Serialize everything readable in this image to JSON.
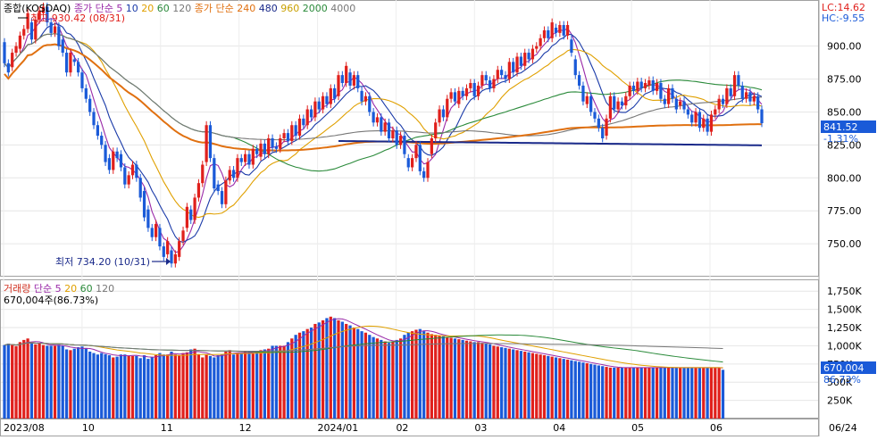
{
  "price_panel": {
    "legend": [
      {
        "text": "종합(KOSDAQ)",
        "color": "#000000"
      },
      {
        "text": "종가 단순 5",
        "color": "#9a2aa8"
      },
      {
        "text": "10",
        "color": "#1a3aa8"
      },
      {
        "text": "20",
        "color": "#e0a000"
      },
      {
        "text": "60",
        "color": "#2a8a3a"
      },
      {
        "text": "120",
        "color": "#777777"
      },
      {
        "text": "종가 단순 240",
        "color": "#e07010"
      },
      {
        "text": "480",
        "color": "#1a2a8a"
      },
      {
        "text": "960",
        "color": "#c8a000"
      },
      {
        "text": "2000",
        "color": "#2a8a3a"
      },
      {
        "text": "4000",
        "color": "#777777"
      }
    ],
    "high_label": "최고 930.42 (08/31)",
    "low_label": "최저 734.20 (10/31)",
    "lc_label": "LC:14.62",
    "hc_label": "HC:-9.55",
    "last_price": "841.52",
    "change_pct": "-1.31%",
    "y_ticks": [
      "900.00",
      "875.00",
      "850.00",
      "825.00",
      "800.00",
      "775.00",
      "750.00"
    ]
  },
  "volume_panel": {
    "legend": [
      {
        "text": "거래량",
        "color": "#d03020"
      },
      {
        "text": "단순 5",
        "color": "#9a2aa8"
      },
      {
        "text": "20",
        "color": "#e0a000"
      },
      {
        "text": "60",
        "color": "#2a8a3a"
      },
      {
        "text": "120",
        "color": "#777777"
      }
    ],
    "info_label": "670,004주(86.73%)",
    "last_volume": "670,004",
    "volume_pct": "86.73%",
    "y_ticks": [
      "1,750K",
      "1,500K",
      "1,250K",
      "1,000K",
      "750K",
      "500K",
      "250K"
    ]
  },
  "x_axis": {
    "labels": [
      "2023/08",
      "10",
      "11",
      "12",
      "2024/01",
      "02",
      "03",
      "04",
      "05",
      "06"
    ],
    "last_date": "06/24"
  },
  "colors": {
    "up": "#e0201c",
    "down": "#1a5ad8",
    "last_box": "#1a5ad8"
  },
  "chart_data": {
    "type": "candlestick",
    "index": "KOSDAQ",
    "x_range": [
      "2023/08",
      "06/24"
    ],
    "price_ylim": [
      725,
      935
    ],
    "volume_ylim": [
      0,
      1900
    ],
    "volume_unit": "K shares",
    "price_series": [
      [
        903,
        887
      ],
      [
        887,
        880
      ],
      [
        884,
        895
      ],
      [
        895,
        900
      ],
      [
        898,
        908
      ],
      [
        908,
        913
      ],
      [
        913,
        925
      ],
      [
        918,
        905
      ],
      [
        905,
        920
      ],
      [
        920,
        927
      ],
      [
        925,
        930
      ],
      [
        930,
        918
      ],
      [
        918,
        910
      ],
      [
        910,
        915
      ],
      [
        915,
        900
      ],
      [
        905,
        895
      ],
      [
        895,
        880
      ],
      [
        880,
        895
      ],
      [
        890,
        888
      ],
      [
        888,
        880
      ],
      [
        880,
        868
      ],
      [
        868,
        860
      ],
      [
        860,
        850
      ],
      [
        850,
        840
      ],
      [
        840,
        832
      ],
      [
        832,
        825
      ],
      [
        825,
        812
      ],
      [
        815,
        806
      ],
      [
        806,
        820
      ],
      [
        820,
        815
      ],
      [
        818,
        808
      ],
      [
        808,
        795
      ],
      [
        795,
        802
      ],
      [
        802,
        810
      ],
      [
        810,
        800
      ],
      [
        800,
        785
      ],
      [
        790,
        770
      ],
      [
        776,
        762
      ],
      [
        762,
        755
      ],
      [
        755,
        765
      ],
      [
        762,
        748
      ],
      [
        748,
        740
      ],
      [
        742,
        752
      ],
      [
        745,
        735
      ],
      [
        735,
        742
      ],
      [
        740,
        752
      ],
      [
        752,
        760
      ],
      [
        762,
        778
      ],
      [
        776,
        768
      ],
      [
        768,
        785
      ],
      [
        785,
        796
      ],
      [
        796,
        810
      ],
      [
        812,
        840
      ],
      [
        840,
        815
      ],
      [
        815,
        792
      ],
      [
        795,
        790
      ],
      [
        790,
        780
      ],
      [
        780,
        798
      ],
      [
        798,
        806
      ],
      [
        806,
        800
      ],
      [
        800,
        815
      ],
      [
        815,
        812
      ],
      [
        812,
        818
      ],
      [
        818,
        810
      ],
      [
        810,
        822
      ],
      [
        822,
        818
      ],
      [
        816,
        826
      ],
      [
        826,
        818
      ],
      [
        818,
        830
      ],
      [
        830,
        823
      ],
      [
        824,
        822
      ],
      [
        822,
        830
      ],
      [
        830,
        834
      ],
      [
        834,
        828
      ],
      [
        828,
        840
      ],
      [
        840,
        832
      ],
      [
        832,
        845
      ],
      [
        845,
        840
      ],
      [
        840,
        852
      ],
      [
        852,
        846
      ],
      [
        846,
        858
      ],
      [
        858,
        852
      ],
      [
        852,
        862
      ],
      [
        862,
        856
      ],
      [
        856,
        868
      ],
      [
        868,
        860
      ],
      [
        862,
        878
      ],
      [
        878,
        872
      ],
      [
        872,
        885
      ],
      [
        880,
        870
      ],
      [
        870,
        878
      ],
      [
        878,
        868
      ],
      [
        866,
        858
      ],
      [
        858,
        862
      ],
      [
        862,
        850
      ],
      [
        850,
        842
      ],
      [
        842,
        846
      ],
      [
        846,
        835
      ],
      [
        835,
        842
      ],
      [
        842,
        830
      ],
      [
        830,
        836
      ],
      [
        836,
        825
      ],
      [
        825,
        832
      ],
      [
        832,
        818
      ],
      [
        815,
        808
      ],
      [
        808,
        815
      ],
      [
        815,
        825
      ],
      [
        825,
        805
      ],
      [
        805,
        800
      ],
      [
        800,
        812
      ],
      [
        818,
        830
      ],
      [
        830,
        842
      ],
      [
        842,
        852
      ],
      [
        852,
        846
      ],
      [
        846,
        860
      ],
      [
        860,
        865
      ],
      [
        865,
        858
      ],
      [
        856,
        866
      ],
      [
        866,
        862
      ],
      [
        862,
        868
      ],
      [
        868,
        872
      ],
      [
        872,
        862
      ],
      [
        862,
        870
      ],
      [
        870,
        878
      ],
      [
        878,
        874
      ],
      [
        874,
        868
      ],
      [
        868,
        875
      ],
      [
        875,
        882
      ],
      [
        882,
        878
      ],
      [
        878,
        875
      ],
      [
        875,
        888
      ],
      [
        888,
        880
      ],
      [
        880,
        892
      ],
      [
        892,
        885
      ],
      [
        885,
        895
      ],
      [
        895,
        890
      ],
      [
        890,
        898
      ],
      [
        898,
        900
      ],
      [
        900,
        906
      ],
      [
        906,
        912
      ],
      [
        912,
        906
      ],
      [
        906,
        918
      ],
      [
        914,
        910
      ],
      [
        910,
        916
      ],
      [
        916,
        908
      ],
      [
        908,
        916
      ],
      [
        905,
        895
      ],
      [
        890,
        878
      ],
      [
        878,
        870
      ],
      [
        870,
        858
      ],
      [
        856,
        862
      ],
      [
        862,
        850
      ],
      [
        850,
        845
      ],
      [
        845,
        838
      ],
      [
        838,
        830
      ],
      [
        832,
        845
      ],
      [
        845,
        862
      ],
      [
        862,
        852
      ],
      [
        852,
        858
      ],
      [
        858,
        855
      ],
      [
        855,
        862
      ],
      [
        862,
        870
      ],
      [
        870,
        866
      ],
      [
        866,
        873
      ],
      [
        873,
        868
      ],
      [
        868,
        872
      ],
      [
        870,
        874
      ],
      [
        874,
        866
      ],
      [
        866,
        872
      ],
      [
        872,
        860
      ],
      [
        860,
        856
      ],
      [
        856,
        868
      ],
      [
        868,
        860
      ],
      [
        860,
        852
      ],
      [
        855,
        858
      ],
      [
        858,
        852
      ],
      [
        852,
        848
      ],
      [
        848,
        842
      ],
      [
        842,
        850
      ],
      [
        850,
        838
      ],
      [
        838,
        845
      ],
      [
        845,
        835
      ],
      [
        835,
        848
      ],
      [
        848,
        852
      ],
      [
        852,
        860
      ],
      [
        860,
        856
      ],
      [
        856,
        868
      ],
      [
        868,
        862
      ],
      [
        862,
        878
      ],
      [
        878,
        870
      ],
      [
        870,
        860
      ],
      [
        860,
        865
      ],
      [
        865,
        858
      ],
      [
        858,
        862
      ],
      [
        862,
        852
      ],
      [
        852,
        841.52
      ]
    ],
    "volume_series": [
      1010,
      1030,
      1010,
      995,
      1050,
      1080,
      1100,
      1040,
      1020,
      1030,
      1010,
      1000,
      1000,
      1000,
      1015,
      1005,
      950,
      940,
      960,
      980,
      990,
      960,
      920,
      900,
      880,
      900,
      885,
      870,
      840,
      850,
      880,
      880,
      865,
      860,
      860,
      830,
      870,
      820,
      840,
      870,
      900,
      880,
      880,
      920,
      880,
      870,
      900,
      910,
      950,
      960,
      880,
      840,
      880,
      860,
      840,
      870,
      880,
      920,
      940,
      880,
      900,
      890,
      920,
      930,
      900,
      920,
      940,
      950,
      960,
      1000,
      1000,
      1000,
      1000,
      1050,
      1100,
      1150,
      1180,
      1200,
      1230,
      1250,
      1300,
      1320,
      1350,
      1380,
      1400,
      1380,
      1350,
      1330,
      1300,
      1280,
      1250,
      1230,
      1200,
      1180,
      1150,
      1120,
      1100,
      1080,
      1060,
      1040,
      1060,
      1080,
      1100,
      1150,
      1180,
      1200,
      1220,
      1230,
      1200,
      1180,
      1160,
      1150,
      1140,
      1130,
      1120,
      1110,
      1100,
      1090,
      1080,
      1070,
      1060,
      1050,
      1050,
      1040,
      1030,
      1020,
      1000,
      990,
      980,
      970,
      960,
      950,
      940,
      930,
      920,
      910,
      900,
      890,
      880,
      870,
      860,
      850,
      840,
      830,
      820,
      810,
      800,
      790,
      780,
      770,
      760,
      750,
      740,
      730,
      720,
      710,
      700,
      700,
      700,
      700,
      700,
      700,
      700,
      700,
      700,
      700,
      700,
      700,
      700,
      700,
      700,
      700,
      700,
      700,
      700,
      700,
      700,
      700,
      700,
      700,
      700,
      700,
      700,
      700,
      700,
      670
    ],
    "annotations": {
      "high": 930.42,
      "high_date": "08/31",
      "low": 734.2,
      "low_date": "10/31",
      "last": 841.52,
      "change_pct": -1.31
    }
  }
}
